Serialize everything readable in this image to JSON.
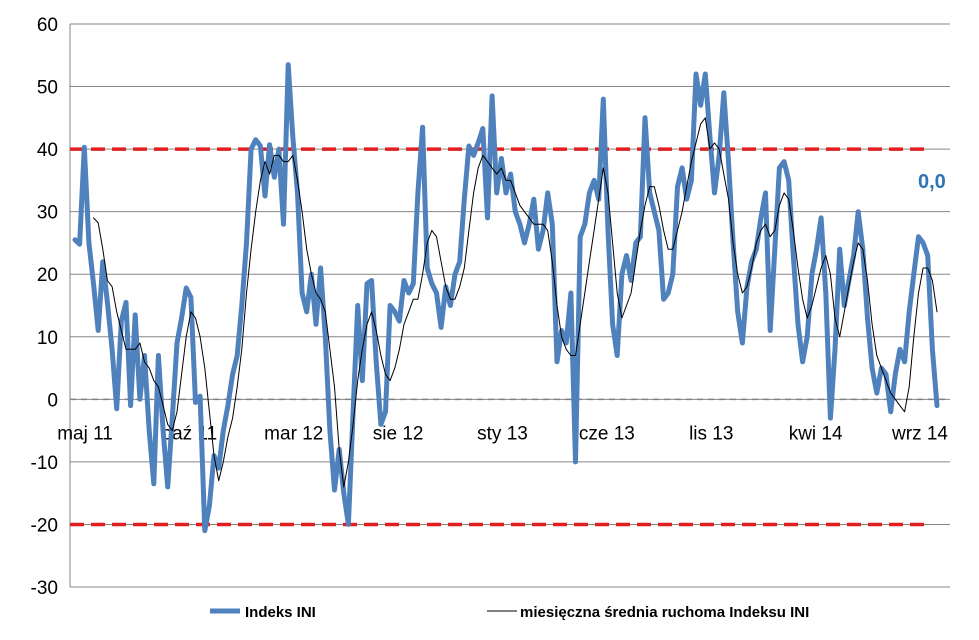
{
  "chart_data": {
    "type": "line",
    "ylim": [
      -30,
      60
    ],
    "yticks": [
      -30,
      -20,
      -10,
      0,
      10,
      20,
      30,
      40,
      50,
      60
    ],
    "xtick_labels": [
      "maj 11",
      "paź 11",
      "mar 12",
      "sie 12",
      "sty 13",
      "cze 13",
      "lis 13",
      "kwi 14",
      "wrz 14"
    ],
    "grid": true,
    "legend_position": "bottom",
    "reference_lines": [
      {
        "y": 40,
        "color": "#e02020",
        "style": "dashed"
      },
      {
        "y": -20,
        "color": "#e02020",
        "style": "dashed"
      },
      {
        "y": 0,
        "color": "#808080",
        "style": "dashed"
      }
    ],
    "end_label": "0,0",
    "series": [
      {
        "name": "Indeks INI",
        "color": "#4f81bd",
        "values": [
          25.5,
          24.8,
          40.3,
          25,
          18.5,
          11,
          22,
          15.5,
          8,
          -1.5,
          12.5,
          15.5,
          -1,
          13.5,
          0,
          7,
          -5,
          -13.5,
          7,
          -5,
          -14,
          -3,
          9,
          13,
          17.8,
          16.3,
          -0.5,
          0.5,
          -21,
          -17,
          -9,
          -11,
          -5,
          -1,
          4,
          7,
          15,
          25,
          40,
          41.5,
          40.5,
          32.5,
          40.7,
          35.5,
          40,
          28,
          53.5,
          42,
          33,
          17,
          14,
          20,
          12,
          21,
          10,
          -5,
          -14.5,
          -8,
          -15,
          -20,
          -2,
          15,
          3,
          18.5,
          19,
          6,
          -4,
          -2,
          15,
          14,
          12.5,
          19,
          17,
          18.5,
          33,
          43.5,
          21,
          18.5,
          17,
          11.5,
          18,
          15,
          20,
          22,
          32,
          40.5,
          39,
          41,
          43.3,
          29,
          48.5,
          33,
          38.5,
          33,
          36,
          30,
          28,
          25,
          28,
          32,
          24,
          27,
          33,
          28,
          6,
          11,
          9,
          17,
          -10,
          26,
          28,
          33,
          35,
          32,
          48,
          27,
          12,
          7,
          20,
          23,
          19,
          25,
          26,
          45,
          33,
          30,
          27,
          16,
          17,
          20,
          34,
          37,
          32,
          35,
          52,
          47,
          52,
          42,
          33,
          39,
          49,
          38,
          25,
          14,
          9,
          18,
          22,
          24,
          29,
          33,
          11,
          24,
          37,
          38,
          35,
          23,
          12,
          6,
          10,
          20,
          24,
          29,
          17,
          -3,
          8,
          24,
          15,
          19,
          23,
          30,
          24,
          13,
          5,
          1,
          5,
          4,
          -2,
          4,
          8,
          6,
          14,
          20,
          26,
          25,
          23,
          8,
          -1
        ],
        "note": "thick line"
      },
      {
        "name": "miesięczna średnia ruchoma Indeksu INI",
        "color": "#000000",
        "values": [
          null,
          null,
          null,
          null,
          29,
          28.2,
          24,
          19,
          18,
          14,
          11,
          8,
          8,
          8,
          9,
          6,
          5,
          3,
          2,
          -1,
          -4,
          -5,
          -2,
          4,
          10,
          14,
          13,
          10,
          5,
          -2,
          -9,
          -13,
          -10,
          -6,
          -3,
          2,
          8,
          17,
          24,
          30,
          35,
          38,
          36,
          39,
          39,
          38,
          38,
          39,
          35,
          30,
          24,
          20,
          17,
          16,
          14,
          8,
          2,
          -8,
          -14,
          -10,
          -4,
          3,
          8,
          12,
          14,
          11,
          7,
          4,
          3,
          5,
          8,
          12,
          14,
          16,
          16,
          20,
          25,
          27,
          26,
          22,
          18,
          16,
          16,
          18,
          21,
          27,
          33,
          37,
          39,
          38,
          37,
          36,
          37,
          35,
          35,
          33,
          31,
          30,
          29,
          28,
          28,
          28,
          27,
          22,
          15,
          10,
          8,
          7,
          7,
          12,
          17,
          22,
          27,
          32,
          37,
          33,
          25,
          17,
          13,
          15,
          17,
          22,
          27,
          31,
          34,
          34,
          31,
          27,
          24,
          24,
          27,
          30,
          34,
          38,
          41,
          44,
          45,
          40,
          41,
          40,
          36,
          32,
          25,
          20,
          17,
          18,
          21,
          25,
          27,
          28,
          26,
          27,
          31,
          33,
          32,
          27,
          21,
          16,
          13,
          15,
          18,
          21,
          23,
          20,
          13,
          10,
          14,
          18,
          22,
          25,
          24,
          19,
          12,
          7,
          5,
          3,
          1,
          0,
          -1,
          -2,
          2,
          10,
          17,
          21,
          21,
          19,
          14
        ]
      }
    ]
  }
}
